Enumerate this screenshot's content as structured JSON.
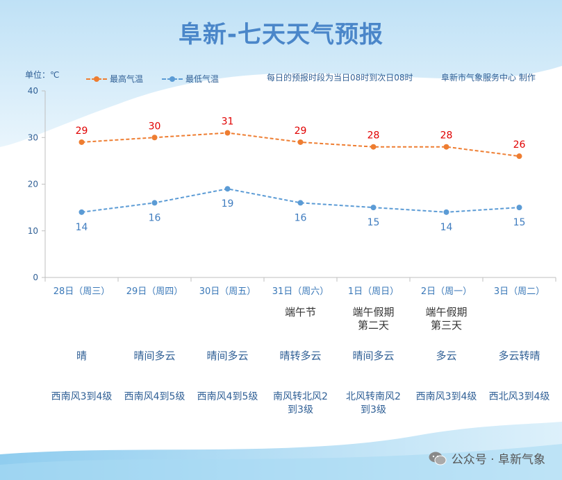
{
  "title": "阜新-七天天气预报",
  "unit_label": "单位：℃",
  "note": "每日的预报时段为当日08时到次日08时",
  "credit": "阜新市气象服务中心 制作",
  "watermark": "公众号 · 阜新气象",
  "colors": {
    "high": "#ee7d31",
    "low": "#5b9bd5",
    "high_label": "#e00000",
    "low_label": "#3f7cbf",
    "axis": "#bfbfbf"
  },
  "chart_data": {
    "type": "line",
    "categories": [
      "28日（周三）",
      "29日（周四）",
      "30日（周五）",
      "31日（周六）",
      "1日（周日）",
      "2日（周一）",
      "3日（周二）"
    ],
    "ylim": [
      0,
      40
    ],
    "yticks": [
      0,
      10,
      20,
      30,
      40
    ],
    "legend": "top-left",
    "grid": false,
    "series": [
      {
        "name": "最高气温",
        "values": [
          29,
          30,
          31,
          29,
          28,
          28,
          26
        ]
      },
      {
        "name": "最低气温",
        "values": [
          14,
          16,
          19,
          16,
          15,
          14,
          15
        ]
      }
    ]
  },
  "festivals": [
    "",
    "",
    "",
    "端午节",
    "端午假期\n第二天",
    "端午假期\n第三天",
    ""
  ],
  "weather": [
    "晴",
    "晴间多云",
    "晴间多云",
    "晴转多云",
    "晴间多云",
    "多云",
    "多云转晴"
  ],
  "wind": [
    "西南风3到4级",
    "西南风4到5级",
    "西南风4到5级",
    "南风转北风2\n到3级",
    "北风转南风2\n到3级",
    "西南风3到4级",
    "西北风3到4级"
  ]
}
